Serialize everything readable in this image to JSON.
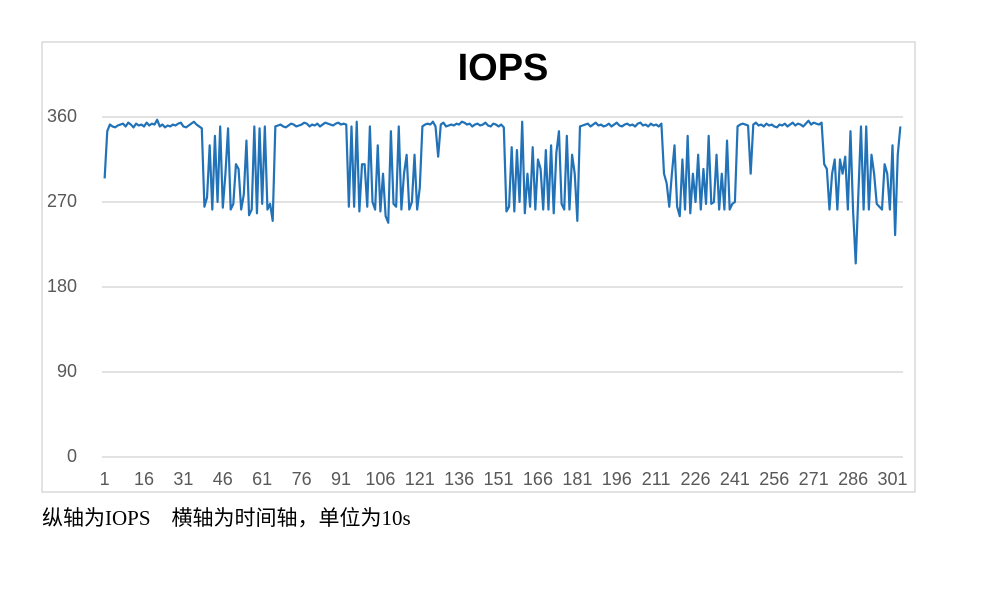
{
  "chart_data": {
    "type": "line",
    "title": "IOPS",
    "caption": "纵轴为IOPS　横轴为时间轴，单位为10s",
    "color": "#2272b8",
    "x": [
      1,
      2,
      3,
      4,
      5,
      6,
      7,
      8,
      9,
      10,
      11,
      12,
      13,
      14,
      15,
      16,
      17,
      18,
      19,
      20,
      21,
      22,
      23,
      24,
      25,
      26,
      27,
      28,
      29,
      30,
      31,
      32,
      33,
      34,
      35,
      36,
      37,
      38,
      39,
      40,
      41,
      42,
      43,
      44,
      45,
      46,
      47,
      48,
      49,
      50,
      51,
      52,
      53,
      54,
      55,
      56,
      57,
      58,
      59,
      60,
      61,
      62,
      63,
      64,
      65,
      66,
      67,
      68,
      69,
      70,
      71,
      72,
      73,
      74,
      75,
      76,
      77,
      78,
      79,
      80,
      81,
      82,
      83,
      84,
      85,
      86,
      87,
      88,
      89,
      90,
      91,
      92,
      93,
      94,
      95,
      96,
      97,
      98,
      99,
      100,
      101,
      102,
      103,
      104,
      105,
      106,
      107,
      108,
      109,
      110,
      111,
      112,
      113,
      114,
      115,
      116,
      117,
      118,
      119,
      120,
      121,
      122,
      123,
      124,
      125,
      126,
      127,
      128,
      129,
      130,
      131,
      132,
      133,
      134,
      135,
      136,
      137,
      138,
      139,
      140,
      141,
      142,
      143,
      144,
      145,
      146,
      147,
      148,
      149,
      150,
      151,
      152,
      153,
      154,
      155,
      156,
      157,
      158,
      159,
      160,
      161,
      162,
      163,
      164,
      165,
      166,
      167,
      168,
      169,
      170,
      171,
      172,
      173,
      174,
      175,
      176,
      177,
      178,
      179,
      180,
      181,
      182,
      183,
      184,
      185,
      186,
      187,
      188,
      189,
      190,
      191,
      192,
      193,
      194,
      195,
      196,
      197,
      198,
      199,
      200,
      201,
      202,
      203,
      204,
      205,
      206,
      207,
      208,
      209,
      210,
      211,
      212,
      213,
      214,
      215,
      216,
      217,
      218,
      219,
      220,
      221,
      222,
      223,
      224,
      225,
      226,
      227,
      228,
      229,
      230,
      231,
      232,
      233,
      234,
      235,
      236,
      237,
      238,
      239,
      240,
      241,
      242,
      243,
      244,
      245,
      246,
      247,
      248,
      249,
      250,
      251,
      252,
      253,
      254,
      255,
      256,
      257,
      258,
      259,
      260,
      261,
      262,
      263,
      264,
      265,
      266,
      267,
      268,
      269,
      270,
      271,
      272,
      273,
      274,
      275,
      276,
      277,
      278,
      279,
      280,
      281,
      282,
      283,
      284,
      285,
      286,
      287,
      288,
      289,
      290,
      291,
      292,
      293,
      294,
      295,
      296,
      297,
      298,
      299,
      300,
      301,
      302,
      303,
      304
    ],
    "values": [
      295,
      345,
      352,
      350,
      349,
      351,
      352,
      353,
      350,
      354,
      352,
      349,
      353,
      351,
      352,
      350,
      354,
      351,
      353,
      352,
      357,
      350,
      352,
      349,
      351,
      350,
      352,
      351,
      353,
      354,
      350,
      349,
      351,
      353,
      355,
      352,
      350,
      348,
      265,
      275,
      330,
      262,
      340,
      270,
      350,
      264,
      300,
      348,
      262,
      268,
      310,
      305,
      262,
      278,
      335,
      256,
      262,
      350,
      258,
      348,
      268,
      350,
      262,
      268,
      250,
      350,
      351,
      352,
      350,
      349,
      351,
      353,
      352,
      350,
      351,
      352,
      354,
      353,
      350,
      352,
      351,
      353,
      350,
      352,
      354,
      353,
      352,
      351,
      353,
      354,
      352,
      353,
      352,
      265,
      350,
      265,
      355,
      260,
      310,
      310,
      265,
      350,
      270,
      262,
      330,
      260,
      300,
      255,
      248,
      345,
      268,
      265,
      350,
      262,
      300,
      320,
      262,
      270,
      320,
      262,
      285,
      350,
      352,
      353,
      352,
      355,
      350,
      318,
      352,
      354,
      350,
      351,
      352,
      351,
      353,
      352,
      355,
      354,
      352,
      353,
      350,
      352,
      353,
      351,
      352,
      354,
      351,
      350,
      353,
      352,
      350,
      352,
      349,
      260,
      265,
      328,
      260,
      325,
      270,
      355,
      258,
      300,
      265,
      328,
      262,
      315,
      305,
      262,
      325,
      262,
      330,
      258,
      322,
      345,
      268,
      262,
      340,
      262,
      320,
      300,
      250,
      350,
      351,
      352,
      353,
      350,
      352,
      354,
      351,
      352,
      350,
      351,
      353,
      350,
      352,
      354,
      351,
      350,
      352,
      353,
      351,
      352,
      350,
      353,
      354,
      351,
      352,
      350,
      353,
      351,
      352,
      350,
      353,
      300,
      290,
      265,
      300,
      330,
      265,
      255,
      315,
      262,
      340,
      258,
      300,
      270,
      320,
      262,
      305,
      268,
      340,
      268,
      270,
      320,
      262,
      300,
      262,
      335,
      262,
      268,
      270,
      350,
      352,
      353,
      352,
      351,
      300,
      352,
      354,
      351,
      352,
      350,
      353,
      351,
      352,
      350,
      349,
      352,
      351,
      353,
      350,
      352,
      354,
      351,
      353,
      352,
      350,
      353,
      356,
      352,
      354,
      353,
      352,
      354,
      310,
      305,
      262,
      300,
      315,
      262,
      315,
      300,
      318,
      262,
      345,
      260,
      205,
      278,
      350,
      262,
      350,
      262,
      320,
      300,
      268,
      265,
      262,
      310,
      300,
      262,
      330,
      235,
      320,
      350
    ],
    "xlim": [
      0,
      305
    ],
    "xticks": [
      1,
      16,
      31,
      46,
      61,
      76,
      91,
      106,
      121,
      136,
      151,
      166,
      181,
      196,
      211,
      226,
      241,
      256,
      271,
      286,
      301
    ],
    "ylim": [
      0,
      360
    ],
    "yticks": [
      0,
      90,
      180,
      270,
      360
    ],
    "grid": true
  }
}
